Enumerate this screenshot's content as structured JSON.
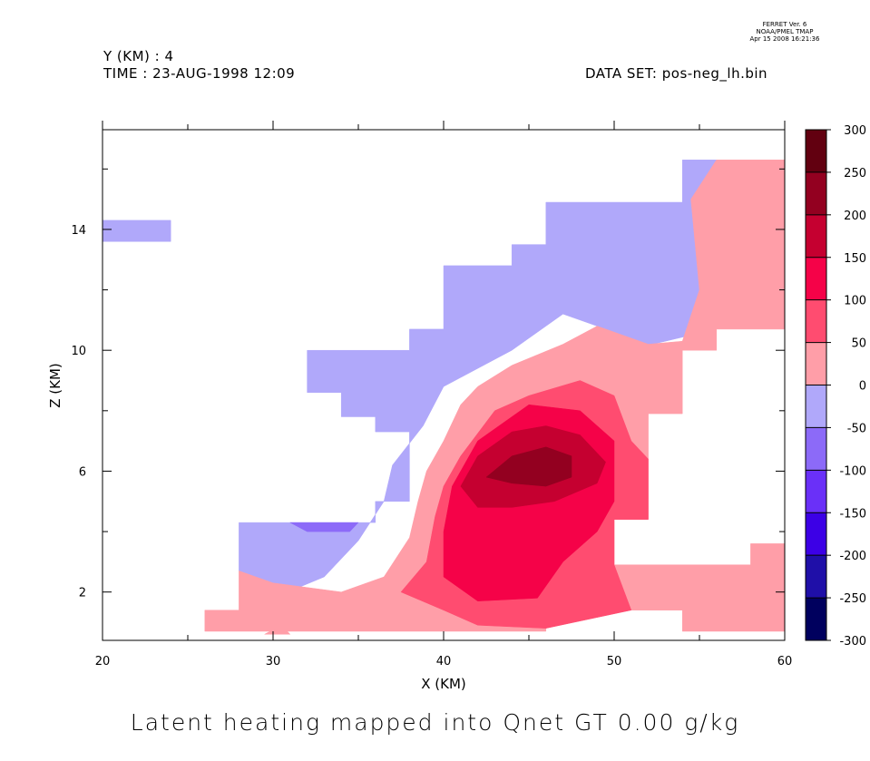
{
  "header": {
    "left_line1": "Y (KM) : 4",
    "left_line2": "TIME : 23-AUG-1998 12:09",
    "dataset": "DATA SET: pos-neg_lh.bin",
    "stamp_line1": "FERRET Ver. 6",
    "stamp_line2": "NOAA/PMEL TMAP",
    "stamp_line3": "Apr 15 2008 16:21:36"
  },
  "chart_data": {
    "type": "contour",
    "title": "Latent heating mapped into Qnet GT 0.00 g/kg",
    "xlabel": "X (KM)",
    "ylabel": "Z (KM)",
    "xlim": [
      20,
      60
    ],
    "ylim": [
      0.4,
      17.3
    ],
    "x_ticks": [
      20,
      30,
      40,
      50,
      60
    ],
    "y_ticks": [
      2,
      6,
      10,
      14
    ],
    "colorbar": {
      "levels": [
        -300,
        -250,
        -200,
        -150,
        -100,
        -50,
        0,
        50,
        100,
        150,
        200,
        250,
        300
      ],
      "labels": [
        "300",
        "250",
        "200",
        "150",
        "100",
        "50",
        "0",
        "-50",
        "-100",
        "-150",
        "-200",
        "-250",
        "-300"
      ],
      "colors": [
        "#00005e",
        "#1f0fa8",
        "#3c00e6",
        "#6a30f8",
        "#8c6af8",
        "#b0a8fa",
        "#ff9ea8",
        "#ff4c70",
        "#f50248",
        "#c50030",
        "#930020",
        "#620010"
      ]
    },
    "regions": [
      {
        "level": "-50..0",
        "color": "#b0a8fa",
        "points": [
          [
            20,
            13.6
          ],
          [
            24,
            13.6
          ],
          [
            24,
            14.3
          ],
          [
            20,
            14.3
          ]
        ]
      },
      {
        "level": "-50..0",
        "color": "#b0a8fa",
        "points": [
          [
            54,
            16.3
          ],
          [
            56,
            16.3
          ],
          [
            55,
            15
          ],
          [
            55.5,
            12
          ],
          [
            54.5,
            10.5
          ],
          [
            51.5,
            10.1
          ],
          [
            49,
            10.8
          ],
          [
            47,
            11.2
          ],
          [
            44,
            10
          ],
          [
            40,
            8.8
          ],
          [
            38.8,
            7.5
          ],
          [
            37,
            6.2
          ],
          [
            36.5,
            5
          ],
          [
            35,
            3.7
          ],
          [
            33,
            2.5
          ],
          [
            30,
            1.8
          ],
          [
            28,
            2.7
          ],
          [
            28,
            4.3
          ],
          [
            36,
            4.3
          ],
          [
            36,
            5
          ],
          [
            38,
            5
          ],
          [
            38,
            7.3
          ],
          [
            36,
            7.3
          ],
          [
            36,
            7.8
          ],
          [
            34,
            7.8
          ],
          [
            34,
            8.6
          ],
          [
            32,
            8.6
          ],
          [
            32,
            10
          ],
          [
            38,
            10
          ],
          [
            38,
            10.7
          ],
          [
            40,
            10.7
          ],
          [
            40,
            12.8
          ],
          [
            44,
            12.8
          ],
          [
            44,
            13.5
          ],
          [
            46,
            13.5
          ],
          [
            46,
            14.9
          ],
          [
            54,
            14.9
          ]
        ]
      },
      {
        "level": "0..50",
        "color": "#ff9ea8",
        "points": [
          [
            56,
            16.3
          ],
          [
            60,
            16.3
          ],
          [
            60,
            10.7
          ],
          [
            56,
            10.7
          ],
          [
            56,
            10
          ],
          [
            54,
            10
          ],
          [
            54,
            7.9
          ],
          [
            52,
            7.9
          ],
          [
            52,
            6.4
          ],
          [
            50,
            6.4
          ],
          [
            50,
            2.9
          ],
          [
            58,
            2.9
          ],
          [
            58,
            3.6
          ],
          [
            60,
            3.6
          ],
          [
            60,
            0.7
          ],
          [
            54,
            0.7
          ],
          [
            54,
            1.4
          ],
          [
            46,
            1.4
          ],
          [
            46,
            0.7
          ],
          [
            26,
            0.7
          ],
          [
            26,
            1.4
          ],
          [
            28,
            1.4
          ],
          [
            28,
            2.7
          ],
          [
            30,
            2.3
          ],
          [
            34,
            2
          ],
          [
            36.5,
            2.5
          ],
          [
            38,
            3.8
          ],
          [
            38.5,
            5
          ],
          [
            39,
            6
          ],
          [
            40,
            7
          ],
          [
            41,
            8.2
          ],
          [
            42,
            8.8
          ],
          [
            44,
            9.5
          ],
          [
            47,
            10.2
          ],
          [
            49,
            10.8
          ],
          [
            52,
            10.2
          ],
          [
            54,
            10.3
          ],
          [
            55,
            12
          ],
          [
            54.5,
            15
          ]
        ]
      },
      {
        "level": "-100..-50",
        "color": "#8c6af8",
        "points": [
          [
            31,
            4.3
          ],
          [
            35,
            4.3
          ],
          [
            34.5,
            4
          ],
          [
            32,
            4
          ],
          [
            31,
            4.3
          ]
        ]
      },
      {
        "level": "50..100",
        "color": "#ff4c70",
        "points": [
          [
            37.5,
            2
          ],
          [
            39,
            3
          ],
          [
            39.5,
            4.5
          ],
          [
            40,
            5.5
          ],
          [
            41,
            6.5
          ],
          [
            43,
            8
          ],
          [
            45,
            8.5
          ],
          [
            48,
            9
          ],
          [
            50,
            8.5
          ],
          [
            51,
            7
          ],
          [
            52,
            6.4
          ],
          [
            52,
            4.4
          ],
          [
            50,
            4.4
          ],
          [
            50,
            2.9
          ],
          [
            51,
            1.4
          ],
          [
            46,
            0.8
          ],
          [
            42,
            0.9
          ],
          [
            40,
            1.4
          ]
        ]
      },
      {
        "level": "100..150",
        "color": "#f50248",
        "points": [
          [
            40,
            2.5
          ],
          [
            40,
            4
          ],
          [
            40.5,
            5.5
          ],
          [
            42,
            7
          ],
          [
            45,
            8.2
          ],
          [
            48,
            8
          ],
          [
            50,
            7
          ],
          [
            50,
            5
          ],
          [
            49,
            4
          ],
          [
            47,
            3
          ],
          [
            45.5,
            1.8
          ],
          [
            42,
            1.7
          ]
        ]
      },
      {
        "level": "150..200",
        "color": "#c50030",
        "points": [
          [
            41,
            5.5
          ],
          [
            42,
            6.5
          ],
          [
            44,
            7.3
          ],
          [
            46,
            7.5
          ],
          [
            48,
            7.2
          ],
          [
            49.5,
            6.3
          ],
          [
            49,
            5.6
          ],
          [
            46.5,
            5
          ],
          [
            44,
            4.8
          ],
          [
            42,
            4.8
          ]
        ]
      },
      {
        "level": "200..250",
        "color": "#930020",
        "points": [
          [
            42.5,
            5.8
          ],
          [
            44,
            6.5
          ],
          [
            46,
            6.8
          ],
          [
            47.5,
            6.5
          ],
          [
            47.5,
            5.8
          ],
          [
            46,
            5.5
          ],
          [
            44,
            5.6
          ]
        ]
      },
      {
        "level": "0..50",
        "color": "#ff9ea8",
        "points": [
          [
            29.5,
            0.6
          ],
          [
            31,
            0.6
          ],
          [
            30.5,
            0.9
          ]
        ]
      }
    ]
  }
}
